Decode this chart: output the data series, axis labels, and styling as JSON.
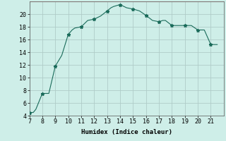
{
  "x": [
    7,
    7.3,
    7.5,
    8,
    8.5,
    9,
    9.5,
    10,
    10.3,
    10.5,
    11,
    11.5,
    12,
    12.3,
    12.5,
    13,
    13.3,
    13.5,
    14,
    14.2,
    14.5,
    15,
    15.5,
    16,
    16.5,
    17,
    17.3,
    17.5,
    18,
    18.5,
    19,
    19.5,
    20,
    20.5,
    21,
    21.5
  ],
  "y": [
    4.5,
    4.5,
    5.0,
    7.5,
    7.5,
    11.8,
    13.5,
    16.8,
    17.5,
    17.8,
    18.0,
    19.0,
    19.2,
    19.5,
    19.7,
    20.5,
    21.0,
    21.2,
    21.5,
    21.3,
    21.0,
    20.8,
    20.5,
    19.8,
    19.0,
    18.8,
    19.0,
    19.0,
    18.2,
    18.2,
    18.2,
    18.2,
    17.5,
    17.5,
    15.2,
    15.2
  ],
  "line_color": "#1a6b5a",
  "marker_x": [
    7,
    8,
    9,
    10,
    11,
    12,
    13,
    14,
    15,
    16,
    17,
    18,
    19,
    20,
    21
  ],
  "marker_y": [
    4.5,
    7.5,
    11.8,
    16.8,
    18.0,
    19.2,
    20.5,
    21.5,
    20.8,
    19.8,
    18.8,
    18.2,
    18.2,
    17.5,
    15.2
  ],
  "bg_color": "#ceeee8",
  "major_grid_color": "#b0ccc8",
  "minor_grid_color": "#d4a0a0",
  "xlabel": "Humidex (Indice chaleur)",
  "xlim": [
    7,
    22
  ],
  "ylim": [
    4,
    22
  ],
  "xticks": [
    7,
    8,
    9,
    10,
    11,
    12,
    13,
    14,
    15,
    16,
    17,
    18,
    19,
    20,
    21
  ],
  "yticks": [
    4,
    6,
    8,
    10,
    12,
    14,
    16,
    18,
    20
  ]
}
